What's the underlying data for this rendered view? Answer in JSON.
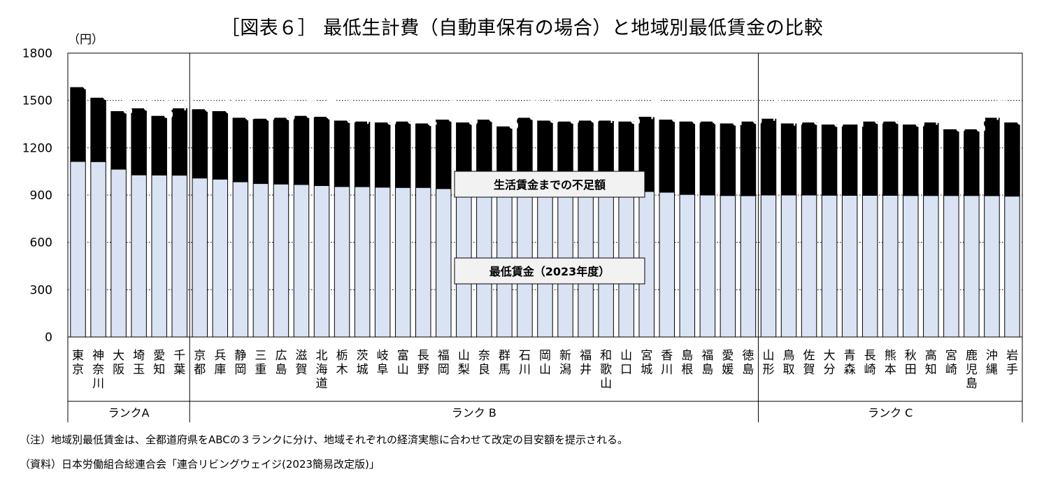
{
  "title": "［図表６］ 最低生計費（自動車保有の場合）と地域別最低賃金の比較",
  "notes": {
    "note": "（注）地域別最低賃金は、全都道府県をABCの３ランクに分け、地域それぞれの経済実態に合わせて改定の目安額を提示される。",
    "source": "（資料）日本労働組合総連合会「連合リビングウェイジ(2023簡易改定版)」"
  },
  "chart_data": {
    "type": "bar",
    "stacked": true,
    "title": "［図表６］ 最低生計費（自動車保有の場合）と地域別最低賃金の比較",
    "ylabel": "（円）",
    "ylim": [
      0,
      1800
    ],
    "yticks": [
      0,
      300,
      600,
      900,
      1200,
      1500,
      1800
    ],
    "grid": "dotted horizontal",
    "categories": [
      "東京",
      "神奈川",
      "大阪",
      "埼玉",
      "愛知",
      "千葉",
      "京都",
      "兵庫",
      "静岡",
      "三重",
      "広島",
      "滋賀",
      "北海道",
      "栃木",
      "茨城",
      "岐阜",
      "富山",
      "長野",
      "福岡",
      "山梨",
      "奈良",
      "群馬",
      "石川",
      "岡山",
      "新潟",
      "福井",
      "和歌山",
      "山口",
      "宮城",
      "香川",
      "島根",
      "福島",
      "愛媛",
      "徳島",
      "山形",
      "鳥取",
      "佐賀",
      "大分",
      "青森",
      "長崎",
      "熊本",
      "秋田",
      "高知",
      "宮崎",
      "鹿児島",
      "沖縄",
      "岩手"
    ],
    "series": [
      {
        "name": "最低賃金（2023年度）",
        "color": "#dae3f3",
        "values": [
          1113,
          1112,
          1064,
          1028,
          1027,
          1026,
          1008,
          1001,
          984,
          973,
          970,
          967,
          960,
          954,
          953,
          950,
          948,
          948,
          941,
          938,
          936,
          935,
          933,
          932,
          931,
          931,
          929,
          928,
          923,
          918,
          904,
          900,
          897,
          896,
          900,
          900,
          900,
          899,
          898,
          898,
          898,
          897,
          897,
          897,
          897,
          896,
          893
        ]
      },
      {
        "name": "生活賃金までの不足額",
        "color": "#000000",
        "values": [
          469,
          403,
          366,
          420,
          373,
          422,
          434,
          429,
          404,
          409,
          418,
          433,
          434,
          416,
          411,
          408,
          416,
          404,
          435,
          420,
          440,
          398,
          455,
          438,
          433,
          439,
          441,
          436,
          471,
          458,
          460,
          464,
          455,
          468,
          482,
          452,
          458,
          446,
          447,
          466,
          466,
          448,
          461,
          418,
          418,
          492,
          465
        ]
      }
    ],
    "groups": [
      {
        "label": "ランクA",
        "start": 0,
        "end": 5
      },
      {
        "label": "ランク B",
        "start": 6,
        "end": 33
      },
      {
        "label": "ランク C",
        "start": 34,
        "end": 46
      }
    ],
    "annotations": {
      "shortage_label": "生活賃金までの不足額",
      "wage_label": "最低賃金（2023年度）"
    }
  }
}
